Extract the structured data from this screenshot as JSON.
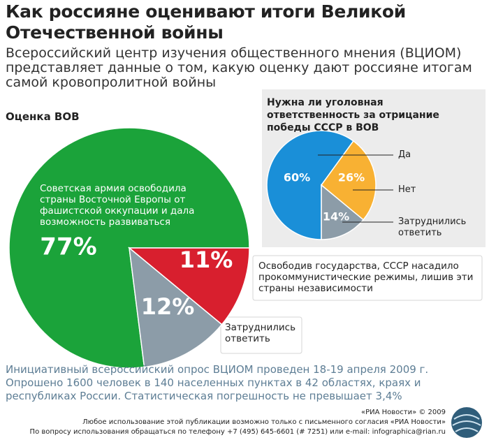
{
  "header": {
    "title": "Как россияне оценивают итоги Великой Отечественной войны",
    "subtitle": "Всероссийский центр изучения общественного мнения (ВЦИОМ) представляет данные о том, какую оценку дают россияне итогам самой кровопролитной войны"
  },
  "chart_data": [
    {
      "type": "pie",
      "title": "Оценка ВОВ",
      "categories": [
        "Советская армия освободила страны Восточной Европы от фашистской оккупации и дала возможность развиваться",
        "Освободив государства, СССР насадило прокоммунистические режимы, лишив эти страны независимости",
        "Затруднились ответить"
      ],
      "values": [
        77,
        11,
        12
      ],
      "value_labels": [
        "77%",
        "11%",
        "12%"
      ],
      "colors": [
        "#1ba33a",
        "#d81f2e",
        "#8c9ca8"
      ]
    },
    {
      "type": "pie",
      "title": "Нужна ли уголовная ответственность за отрицание победы СССР в ВОВ",
      "categories": [
        "Да",
        "Нет",
        "Затруднились ответить"
      ],
      "values": [
        60,
        26,
        14
      ],
      "value_labels": [
        "60%",
        "26%",
        "14%"
      ],
      "colors": [
        "#1a8fd8",
        "#f8b133",
        "#8c9ca8"
      ]
    }
  ],
  "footer": {
    "note": "Инициативный всероссийский опрос ВЦИОМ проведен 18-19 апреля 2009 г. Опрошено 1600 человек в 140 населенных пунктах в 42 областях, краях и республиках России. Статистическая погрешность не превышает 3,4%",
    "credit": "«РИА Новости» © 2009",
    "usage": "Любое использование этой публикации возможно только с письменного согласия «РИА Новости»",
    "contact": "По вопросу использования обращаться по телефону +7 (495) 645-6601 (# 7251) или e-mail: infographica@rian.ru"
  }
}
